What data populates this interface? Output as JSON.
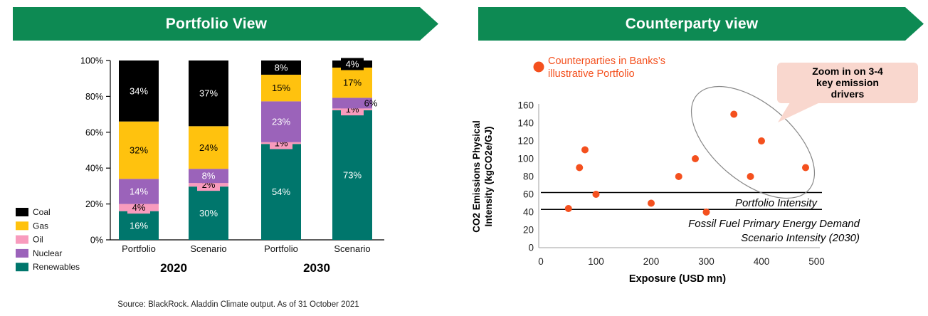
{
  "panels": {
    "portfolio": {
      "title": "Portfolio View"
    },
    "counterparty": {
      "title": "Counterparty view"
    }
  },
  "banner_color": "#0d8a53",
  "source_note": "Source: BlackRock. Aladdin Climate output. As of 31 October 2021",
  "chart_data": [
    {
      "type": "bar",
      "stacked": true,
      "categories": [
        "Portfolio",
        "Scenario",
        "Portfolio",
        "Scenario"
      ],
      "group_labels": [
        "2020",
        "2030"
      ],
      "y_tick_labels": [
        "0%",
        "20%",
        "40%",
        "60%",
        "80%",
        "100%"
      ],
      "ylim": [
        0,
        100
      ],
      "unit": "%",
      "stack_order_bottom_to_top": [
        "Renewables",
        "Oil",
        "Nuclear",
        "Gas",
        "Coal"
      ],
      "series": [
        {
          "name": "Coal",
          "color": "#000000",
          "label_color": "#ffffff",
          "values": [
            34,
            37,
            8,
            4
          ]
        },
        {
          "name": "Gas",
          "color": "#ffc20e",
          "label_color": "#000000",
          "values": [
            32,
            24,
            15,
            17
          ]
        },
        {
          "name": "Oil",
          "color": "#f89bbd",
          "label_color": "#000000",
          "values": [
            4,
            2,
            1,
            1
          ]
        },
        {
          "name": "Nuclear",
          "color": "#9b63ba",
          "label_color": "#ffffff",
          "values": [
            14,
            8,
            23,
            6
          ]
        },
        {
          "name": "Renewables",
          "color": "#00766c",
          "label_color": "#ffffff",
          "values": [
            16,
            30,
            54,
            73
          ]
        }
      ],
      "legend_position": "bottom-left"
    },
    {
      "type": "scatter",
      "xlabel": "Exposure (USD mn)",
      "ylabel_lines": [
        "CO2 Emissions Physical",
        "Intensity (kgCO2e/GJ)"
      ],
      "xlim": [
        0,
        500
      ],
      "ylim": [
        0,
        160
      ],
      "x_ticks": [
        0,
        100,
        200,
        300,
        400,
        500
      ],
      "y_ticks": [
        0,
        20,
        40,
        60,
        80,
        100,
        120,
        140,
        160
      ],
      "point_color": "#f4501e",
      "points": [
        {
          "x": 50,
          "y": 44,
          "circled": false
        },
        {
          "x": 70,
          "y": 90,
          "circled": false
        },
        {
          "x": 80,
          "y": 110,
          "circled": false
        },
        {
          "x": 100,
          "y": 60,
          "circled": false
        },
        {
          "x": 200,
          "y": 50,
          "circled": false
        },
        {
          "x": 250,
          "y": 80,
          "circled": false
        },
        {
          "x": 280,
          "y": 100,
          "circled": false
        },
        {
          "x": 300,
          "y": 40,
          "circled": false
        },
        {
          "x": 350,
          "y": 150,
          "circled": true
        },
        {
          "x": 380,
          "y": 80,
          "circled": true
        },
        {
          "x": 400,
          "y": 120,
          "circled": true
        },
        {
          "x": 480,
          "y": 90,
          "circled": true
        }
      ],
      "reference_lines": [
        {
          "value": 62,
          "label": "Portfolio Intensity",
          "label_lines": [
            "Portfolio Intensity"
          ]
        },
        {
          "value": 43,
          "label": "Fossil Fuel Primary Energy Demand Scenario Intensity (2030)",
          "label_lines": [
            "Fossil Fuel Primary Energy Demand",
            "Scenario Intensity (2030)"
          ]
        }
      ],
      "legend": {
        "label": "Counterparties in Banks’s illustrative Portfolio",
        "label_lines": [
          "Counterparties in Banks’s",
          "illustrative Portfolio"
        ],
        "color": "#f4501e"
      },
      "annotation": {
        "text": "Zoom in on 3-4 key emission drivers",
        "text_lines": [
          "Zoom in on 3-4",
          "key emission",
          "drivers"
        ],
        "bubble_color": "#f9d7ce",
        "ellipse_color": "#888888"
      }
    }
  ]
}
